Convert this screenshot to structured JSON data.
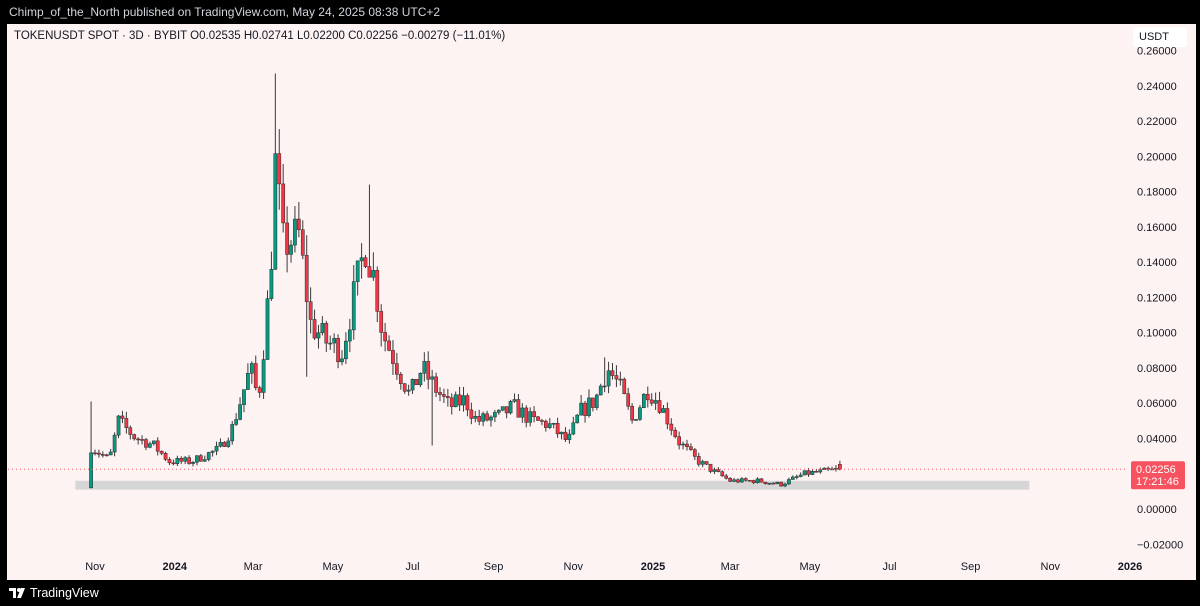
{
  "header": {
    "publish_line": "Chimp_of_the_North published on TradingView.com, May 24, 2025 08:38 UTC+2"
  },
  "legend": {
    "line": "TOKENUSDT SPOT · 3D · BYBIT  O0.02535  H0.02741  L0.02200  C0.02256  −0.00279 (−11.01%)"
  },
  "price_scale": {
    "unit": "USDT"
  },
  "last_price": {
    "value": "0.02256",
    "countdown": "17:21:46"
  },
  "footer": {
    "brand": "TradingView"
  },
  "colors": {
    "up": "#089981",
    "down": "#f23645",
    "background": "#fdf3f3",
    "support_zone": "#d6d6d6",
    "price_label": "#f7525f"
  },
  "chart_data": {
    "type": "candlestick",
    "symbol": "TOKENUSDT",
    "market": "SPOT",
    "interval": "3D",
    "exchange": "BYBIT",
    "ylim": [
      -0.025,
      0.27
    ],
    "y_ticks": [
      "0.26000",
      "0.24000",
      "0.22000",
      "0.20000",
      "0.18000",
      "0.16000",
      "0.14000",
      "0.12000",
      "0.10000",
      "0.08000",
      "0.06000",
      "0.04000",
      "0.02000",
      "0.00000",
      "−0.02000"
    ],
    "x_ticks": [
      {
        "label": "Nov",
        "date": "2023-11-01",
        "bold": false
      },
      {
        "label": "2024",
        "date": "2024-01-01",
        "bold": true
      },
      {
        "label": "Mar",
        "date": "2024-03-01",
        "bold": false
      },
      {
        "label": "May",
        "date": "2024-05-01",
        "bold": false
      },
      {
        "label": "Jul",
        "date": "2024-07-01",
        "bold": false
      },
      {
        "label": "Sep",
        "date": "2024-09-01",
        "bold": false
      },
      {
        "label": "Nov",
        "date": "2024-11-01",
        "bold": false
      },
      {
        "label": "2025",
        "date": "2025-01-01",
        "bold": true
      },
      {
        "label": "Mar",
        "date": "2025-03-01",
        "bold": false
      },
      {
        "label": "May",
        "date": "2025-05-01",
        "bold": false
      },
      {
        "label": "Jul",
        "date": "2025-07-01",
        "bold": false
      },
      {
        "label": "Sep",
        "date": "2025-09-01",
        "bold": false
      },
      {
        "label": "Nov",
        "date": "2025-11-01",
        "bold": false
      },
      {
        "label": "2026",
        "date": "2026-01-01",
        "bold": true
      }
    ],
    "last_close": 0.02256,
    "support_zone": {
      "from": "2023-10-17",
      "to": "2025-10-16",
      "low": 0.011,
      "high": 0.016
    },
    "close_waypoints": [
      [
        "2023-10-29",
        0.035
      ],
      [
        "2023-11-12",
        0.028
      ],
      [
        "2023-11-19",
        0.05
      ],
      [
        "2023-12-01",
        0.041
      ],
      [
        "2023-12-16",
        0.036
      ],
      [
        "2023-12-28",
        0.027
      ],
      [
        "2024-01-14",
        0.027
      ],
      [
        "2024-02-04",
        0.034
      ],
      [
        "2024-02-14",
        0.046
      ],
      [
        "2024-02-28",
        0.08
      ],
      [
        "2024-03-05",
        0.062
      ],
      [
        "2024-03-14",
        0.13
      ],
      [
        "2024-03-18",
        0.195
      ],
      [
        "2024-03-24",
        0.15
      ],
      [
        "2024-04-05",
        0.155
      ],
      [
        "2024-04-14",
        0.105
      ],
      [
        "2024-04-26",
        0.095
      ],
      [
        "2024-05-08",
        0.09
      ],
      [
        "2024-05-17",
        0.12
      ],
      [
        "2024-05-26",
        0.15
      ],
      [
        "2024-06-02",
        0.13
      ],
      [
        "2024-06-08",
        0.1
      ],
      [
        "2024-06-17",
        0.085
      ],
      [
        "2024-06-29",
        0.064
      ],
      [
        "2024-07-08",
        0.08
      ],
      [
        "2024-07-17",
        0.07
      ],
      [
        "2024-07-29",
        0.058
      ],
      [
        "2024-08-10",
        0.062
      ],
      [
        "2024-08-19",
        0.05
      ],
      [
        "2024-09-04",
        0.052
      ],
      [
        "2024-09-16",
        0.058
      ],
      [
        "2024-10-01",
        0.05
      ],
      [
        "2024-10-13",
        0.048
      ],
      [
        "2024-10-28",
        0.038
      ],
      [
        "2024-11-06",
        0.055
      ],
      [
        "2024-11-18",
        0.062
      ],
      [
        "2024-11-27",
        0.08
      ],
      [
        "2024-12-06",
        0.07
      ],
      [
        "2024-12-16",
        0.05
      ],
      [
        "2024-12-28",
        0.068
      ],
      [
        "2025-01-06",
        0.06
      ],
      [
        "2025-01-21",
        0.038
      ],
      [
        "2025-02-03",
        0.028
      ],
      [
        "2025-02-15",
        0.022
      ],
      [
        "2025-03-01",
        0.016
      ],
      [
        "2025-03-22",
        0.016
      ],
      [
        "2025-04-09",
        0.014
      ],
      [
        "2025-04-27",
        0.02
      ],
      [
        "2025-05-24",
        0.02256
      ]
    ],
    "wick_spikes": [
      [
        "2023-10-29",
        0.061
      ],
      [
        "2024-03-21",
        0.247
      ],
      [
        "2024-03-24",
        0.215
      ],
      [
        "2024-05-31",
        0.184
      ],
      [
        "2024-04-14",
        0.075
      ],
      [
        "2024-07-20",
        0.036
      ],
      [
        "2024-11-27",
        0.086
      ]
    ]
  }
}
